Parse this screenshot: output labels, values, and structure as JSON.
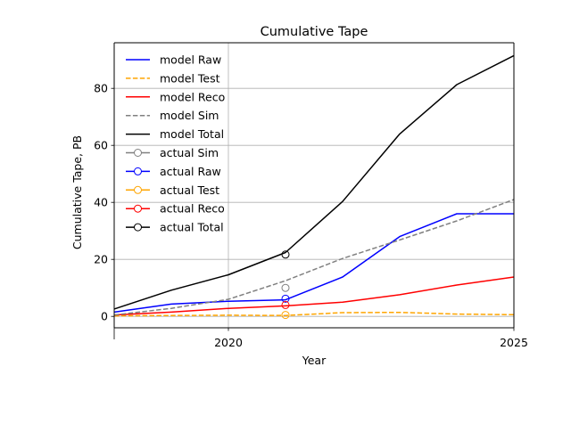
{
  "chart_data": {
    "type": "line",
    "title": "Cumulative Tape",
    "xlabel": "Year",
    "ylabel": "Cumulative Tape, PB",
    "xlim": [
      2018,
      2025
    ],
    "ylim": [
      -4,
      96
    ],
    "x_ticks": [
      2020,
      2025
    ],
    "x_tick_labels": [
      "2020",
      "2025"
    ],
    "y_ticks": [
      0,
      20,
      40,
      60,
      80
    ],
    "y_tick_labels": [
      "0",
      "20",
      "40",
      "60",
      "80"
    ],
    "grid": true,
    "legend_position": "upper-left",
    "x": [
      2018,
      2019,
      2020,
      2021,
      2022,
      2023,
      2024,
      2025
    ],
    "series": [
      {
        "name": "model Raw",
        "style": "solid",
        "marker": "none",
        "color": "#0000ff",
        "values": [
          1.5,
          4.3,
          5.3,
          5.8,
          13.8,
          28,
          36,
          36
        ]
      },
      {
        "name": "model Test",
        "style": "dashed",
        "marker": "none",
        "color": "#ffa500",
        "values": [
          0.2,
          0.3,
          0.4,
          0.3,
          1.3,
          1.4,
          0.8,
          0.6
        ]
      },
      {
        "name": "model Reco",
        "style": "solid",
        "marker": "none",
        "color": "#ff0000",
        "values": [
          0.5,
          1.5,
          2.8,
          3.7,
          5,
          7.6,
          11,
          13.8
        ]
      },
      {
        "name": "model Sim",
        "style": "dashed",
        "marker": "none",
        "color": "#808080",
        "values": [
          0.5,
          2.8,
          6,
          12.5,
          20.3,
          26.8,
          33.5,
          41
        ]
      },
      {
        "name": "model Total",
        "style": "solid",
        "marker": "none",
        "color": "#000000",
        "values": [
          2.6,
          9.2,
          14.6,
          22.4,
          40.3,
          64,
          81.3,
          91.5
        ]
      },
      {
        "name": "actual Sim",
        "style": "solid",
        "marker": "circle",
        "color": "#808080",
        "x": [
          2021
        ],
        "values": [
          10
        ]
      },
      {
        "name": "actual Raw",
        "style": "solid",
        "marker": "circle",
        "color": "#0000ff",
        "x": [
          2021
        ],
        "values": [
          6.2
        ]
      },
      {
        "name": "actual Test",
        "style": "solid",
        "marker": "circle",
        "color": "#ffa500",
        "x": [
          2021
        ],
        "values": [
          0.5
        ]
      },
      {
        "name": "actual Reco",
        "style": "solid",
        "marker": "circle",
        "color": "#ff0000",
        "x": [
          2021
        ],
        "values": [
          4
        ]
      },
      {
        "name": "actual Total",
        "style": "solid",
        "marker": "circle",
        "color": "#000000",
        "x": [
          2021
        ],
        "values": [
          21.7
        ]
      }
    ]
  }
}
